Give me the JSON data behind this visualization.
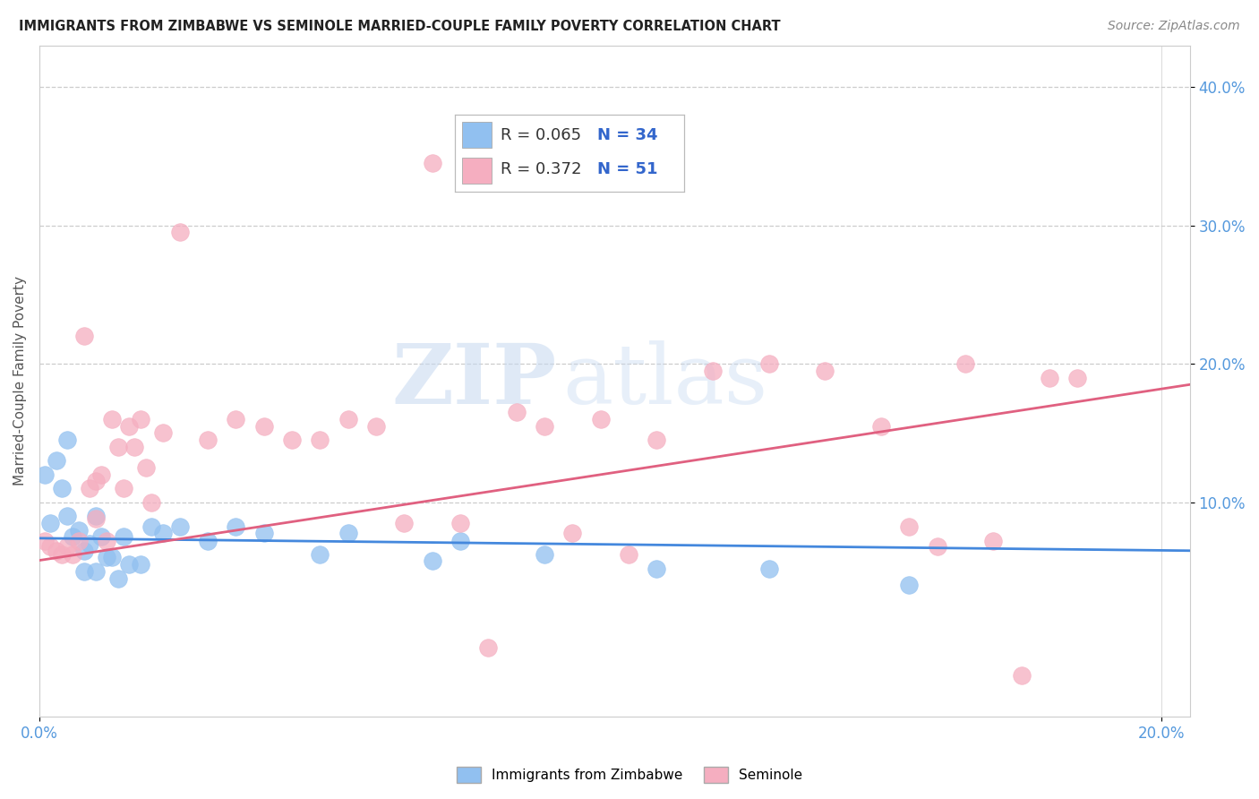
{
  "title": "IMMIGRANTS FROM ZIMBABWE VS SEMINOLE MARRIED-COUPLE FAMILY POVERTY CORRELATION CHART",
  "source": "Source: ZipAtlas.com",
  "ylabel": "Married-Couple Family Poverty",
  "watermark_zip": "ZIP",
  "watermark_atlas": "atlas",
  "legend_blue_r": "R = 0.065",
  "legend_blue_n": "N = 34",
  "legend_pink_r": "R = 0.372",
  "legend_pink_n": "N = 51",
  "xlim": [
    0.0,
    0.205
  ],
  "ylim": [
    -0.055,
    0.43
  ],
  "yticks": [
    0.1,
    0.2,
    0.3,
    0.4
  ],
  "ytick_labels": [
    "10.0%",
    "20.0%",
    "30.0%",
    "40.0%"
  ],
  "xtick_labels": [
    "0.0%",
    "20.0%"
  ],
  "grid_color": "#cccccc",
  "blue_color": "#91c0f0",
  "pink_color": "#f5aec0",
  "blue_line_color": "#4488dd",
  "pink_line_color": "#e06080",
  "title_color": "#222222",
  "axis_label_color": "#5599dd",
  "r_value_color": "#3366cc",
  "n_value_color": "#3366cc",
  "blue_scatter": [
    [
      0.001,
      0.12
    ],
    [
      0.002,
      0.085
    ],
    [
      0.003,
      0.13
    ],
    [
      0.004,
      0.11
    ],
    [
      0.005,
      0.09
    ],
    [
      0.005,
      0.145
    ],
    [
      0.006,
      0.075
    ],
    [
      0.007,
      0.08
    ],
    [
      0.008,
      0.065
    ],
    [
      0.008,
      0.05
    ],
    [
      0.009,
      0.07
    ],
    [
      0.01,
      0.09
    ],
    [
      0.01,
      0.05
    ],
    [
      0.011,
      0.075
    ],
    [
      0.012,
      0.06
    ],
    [
      0.013,
      0.06
    ],
    [
      0.014,
      0.045
    ],
    [
      0.015,
      0.075
    ],
    [
      0.016,
      0.055
    ],
    [
      0.018,
      0.055
    ],
    [
      0.02,
      0.082
    ],
    [
      0.022,
      0.078
    ],
    [
      0.025,
      0.082
    ],
    [
      0.03,
      0.072
    ],
    [
      0.035,
      0.082
    ],
    [
      0.04,
      0.078
    ],
    [
      0.05,
      0.062
    ],
    [
      0.055,
      0.078
    ],
    [
      0.07,
      0.058
    ],
    [
      0.075,
      0.072
    ],
    [
      0.09,
      0.062
    ],
    [
      0.11,
      0.052
    ],
    [
      0.13,
      0.052
    ],
    [
      0.155,
      0.04
    ]
  ],
  "pink_scatter": [
    [
      0.001,
      0.072
    ],
    [
      0.002,
      0.068
    ],
    [
      0.003,
      0.065
    ],
    [
      0.004,
      0.062
    ],
    [
      0.005,
      0.068
    ],
    [
      0.006,
      0.062
    ],
    [
      0.007,
      0.072
    ],
    [
      0.008,
      0.22
    ],
    [
      0.009,
      0.11
    ],
    [
      0.01,
      0.115
    ],
    [
      0.01,
      0.088
    ],
    [
      0.011,
      0.12
    ],
    [
      0.012,
      0.072
    ],
    [
      0.013,
      0.16
    ],
    [
      0.014,
      0.14
    ],
    [
      0.015,
      0.11
    ],
    [
      0.016,
      0.155
    ],
    [
      0.017,
      0.14
    ],
    [
      0.018,
      0.16
    ],
    [
      0.019,
      0.125
    ],
    [
      0.02,
      0.1
    ],
    [
      0.022,
      0.15
    ],
    [
      0.025,
      0.295
    ],
    [
      0.03,
      0.145
    ],
    [
      0.035,
      0.16
    ],
    [
      0.04,
      0.155
    ],
    [
      0.045,
      0.145
    ],
    [
      0.05,
      0.145
    ],
    [
      0.055,
      0.16
    ],
    [
      0.06,
      0.155
    ],
    [
      0.065,
      0.085
    ],
    [
      0.07,
      0.345
    ],
    [
      0.075,
      0.085
    ],
    [
      0.08,
      -0.005
    ],
    [
      0.085,
      0.165
    ],
    [
      0.09,
      0.155
    ],
    [
      0.095,
      0.078
    ],
    [
      0.1,
      0.16
    ],
    [
      0.105,
      0.062
    ],
    [
      0.11,
      0.145
    ],
    [
      0.12,
      0.195
    ],
    [
      0.13,
      0.2
    ],
    [
      0.14,
      0.195
    ],
    [
      0.15,
      0.155
    ],
    [
      0.155,
      0.082
    ],
    [
      0.16,
      0.068
    ],
    [
      0.165,
      0.2
    ],
    [
      0.17,
      0.072
    ],
    [
      0.175,
      -0.025
    ],
    [
      0.18,
      0.19
    ],
    [
      0.185,
      0.19
    ]
  ],
  "blue_line_x": [
    0.0,
    0.205
  ],
  "blue_line_y": [
    0.074,
    0.065
  ],
  "pink_line_x": [
    0.0,
    0.205
  ],
  "pink_line_y": [
    0.058,
    0.185
  ]
}
